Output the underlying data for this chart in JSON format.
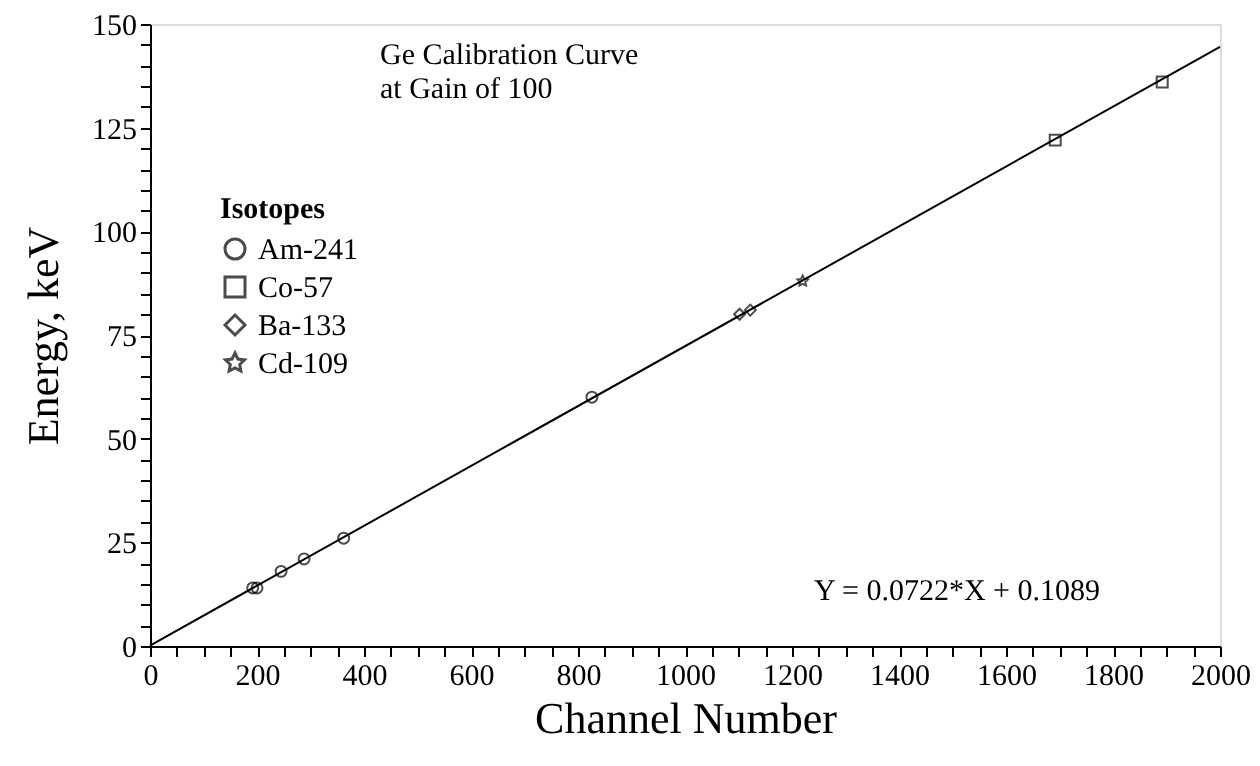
{
  "chart_data": {
    "type": "scatter",
    "title": "Ge Calibration Curve\nat Gain of 100",
    "xlabel": "Channel Number",
    "ylabel": "Energy, keV",
    "legend_title": "Isotopes",
    "legend": "top left",
    "annotations": [
      "Y = 0.0722*X + 0.1089"
    ],
    "xlim": [
      0,
      2000
    ],
    "ylim": [
      0,
      150
    ],
    "grid": false,
    "xticks": [
      0,
      {
        "value": 50,
        "label": null
      },
      {
        "value": 100,
        "label": null
      },
      {
        "value": 150,
        "label": null
      },
      200,
      {
        "value": 250,
        "label": null
      },
      {
        "value": 300,
        "label": null
      },
      {
        "value": 350,
        "label": null
      },
      400,
      {
        "value": 450,
        "label": null
      },
      {
        "value": 500,
        "label": null
      },
      {
        "value": 550,
        "label": null
      },
      600,
      {
        "value": 650,
        "label": null
      },
      {
        "value": 700,
        "label": null
      },
      {
        "value": 750,
        "label": null
      },
      800,
      {
        "value": 850,
        "label": null
      },
      {
        "value": 900,
        "label": null
      },
      {
        "value": 950,
        "label": null
      },
      1000,
      {
        "value": 1050,
        "label": null
      },
      {
        "value": 1100,
        "label": null
      },
      {
        "value": 1150,
        "label": null
      },
      1200,
      {
        "value": 1250,
        "label": null
      },
      {
        "value": 1300,
        "label": null
      },
      {
        "value": 1350,
        "label": null
      },
      1400,
      {
        "value": 1450,
        "label": null
      },
      {
        "value": 1500,
        "label": null
      },
      {
        "value": 1550,
        "label": null
      },
      1600,
      {
        "value": 1650,
        "label": null
      },
      {
        "value": 1700,
        "label": null
      },
      {
        "value": 1750,
        "label": null
      },
      1800,
      {
        "value": 1850,
        "label": null
      },
      {
        "value": 1900,
        "label": null
      },
      {
        "value": 1950,
        "label": null
      },
      2000
    ],
    "yticks": [
      0,
      {
        "value": 5,
        "label": null
      },
      {
        "value": 10,
        "label": null
      },
      {
        "value": 15,
        "label": null
      },
      {
        "value": 20,
        "label": null
      },
      25,
      {
        "value": 30,
        "label": null
      },
      {
        "value": 35,
        "label": null
      },
      {
        "value": 40,
        "label": null
      },
      {
        "value": 45,
        "label": null
      },
      50,
      {
        "value": 55,
        "label": null
      },
      {
        "value": 60,
        "label": null
      },
      {
        "value": 65,
        "label": null
      },
      {
        "value": 70,
        "label": null
      },
      75,
      {
        "value": 80,
        "label": null
      },
      {
        "value": 85,
        "label": null
      },
      {
        "value": 90,
        "label": null
      },
      {
        "value": 95,
        "label": null
      },
      100,
      {
        "value": 105,
        "label": null
      },
      {
        "value": 110,
        "label": null
      },
      {
        "value": 115,
        "label": null
      },
      {
        "value": 120,
        "label": null
      },
      125,
      {
        "value": 130,
        "label": null
      },
      {
        "value": 135,
        "label": null
      },
      {
        "value": 140,
        "label": null
      },
      {
        "value": 145,
        "label": null
      },
      150
    ],
    "series": [
      {
        "name": "Am-241",
        "color": "#000000",
        "marker": "circle",
        "x": [
          192,
          200,
          245,
          288,
          362,
          826
        ],
        "values": [
          14,
          14,
          18,
          21,
          26,
          60
        ]
      },
      {
        "name": "Co-57",
        "color": "#000000",
        "marker": "square",
        "x": [
          1692,
          1892
        ],
        "values": [
          122,
          136
        ]
      },
      {
        "name": "Ba-133",
        "color": "#000000",
        "marker": "diamond",
        "x": [
          1102,
          1122
        ],
        "values": [
          80,
          81
        ]
      },
      {
        "name": "Cd-109",
        "color": "#000000",
        "marker": "star",
        "x": [
          1220
        ],
        "values": [
          88
        ]
      },
      {
        "type": "line",
        "color": "#000000",
        "line_style": "solid",
        "marker": "none",
        "x": [
          0,
          2000
        ],
        "values": [
          0.1,
          144.5
        ]
      }
    ]
  }
}
